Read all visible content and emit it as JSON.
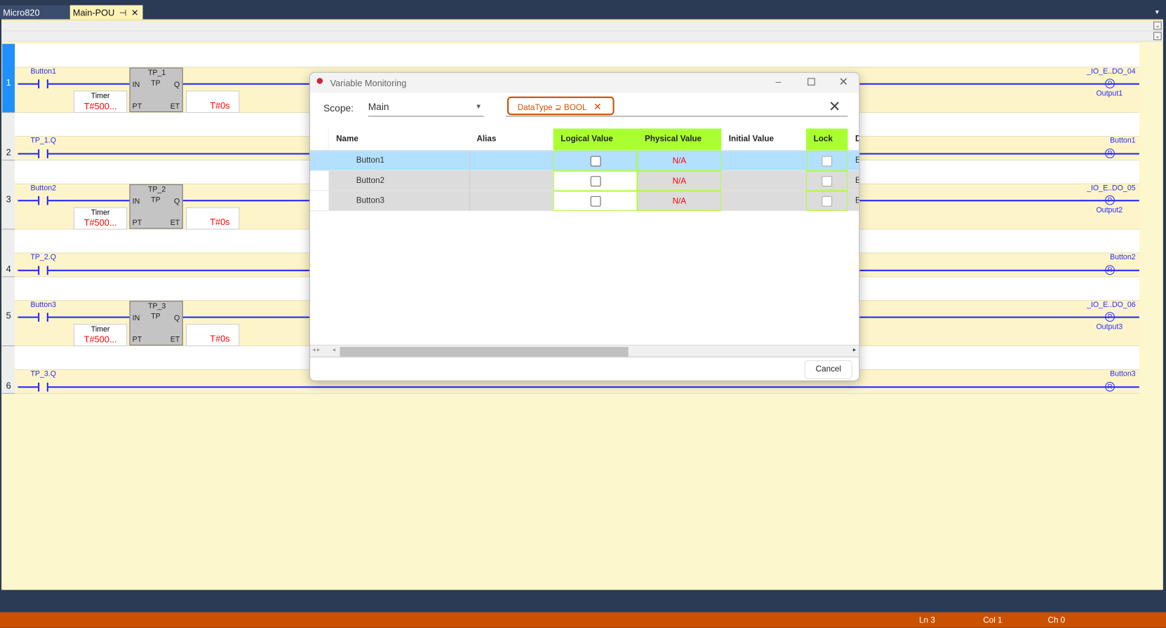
{
  "tabs": [
    {
      "label": "Micro820"
    },
    {
      "label": "Main-POU",
      "pin": "⊣",
      "close": "✕"
    }
  ],
  "rungs": [
    {
      "num": "1",
      "selected": true,
      "contact": "Button1",
      "block": {
        "instance": "TP_1",
        "type": "TP",
        "in": "IN",
        "q": "Q",
        "pt": "PT",
        "et": "ET",
        "pt_label": "Timer",
        "pt_value": "T#500...",
        "et_value": "T#0s"
      },
      "coil_top": "_IO_E..DO_04",
      "coil_name": "Output1",
      "coil_symbol": "P"
    },
    {
      "num": "2",
      "contact": "TP_1.Q",
      "coil_top": "Button1",
      "coil_symbol": "R"
    },
    {
      "num": "3",
      "contact": "Button2",
      "block": {
        "instance": "TP_2",
        "type": "TP",
        "in": "IN",
        "q": "Q",
        "pt": "PT",
        "et": "ET",
        "pt_label": "Timer",
        "pt_value": "T#500...",
        "et_value": "T#0s"
      },
      "coil_top": "_IO_E..DO_05",
      "coil_name": "Output2",
      "coil_symbol": "P"
    },
    {
      "num": "4",
      "contact": "TP_2.Q",
      "coil_top": "Button2",
      "coil_symbol": "R"
    },
    {
      "num": "5",
      "contact": "Button3",
      "block": {
        "instance": "TP_3",
        "type": "TP",
        "in": "IN",
        "q": "Q",
        "pt": "PT",
        "et": "ET",
        "pt_label": "Timer",
        "pt_value": "T#500...",
        "et_value": "T#0s"
      },
      "coil_top": "_IO_E..DO_06",
      "coil_name": "Output3",
      "coil_symbol": "P"
    },
    {
      "num": "6",
      "contact": "TP_3.Q",
      "coil_top": "Button3",
      "coil_symbol": "R"
    }
  ],
  "dialog": {
    "title": "Variable Monitoring",
    "scope_label": "Scope:",
    "scope_value": "Main",
    "filter_chip": "DataType ⊇ BOOL",
    "columns": [
      "Name",
      "Alias",
      "Logical Value",
      "Physical Value",
      "Initial Value",
      "Lock",
      "D"
    ],
    "rows": [
      {
        "name": "Button1",
        "alias": "",
        "logical": false,
        "physical": "N/A",
        "initial": "",
        "lock": false,
        "d": "B",
        "selected": true
      },
      {
        "name": "Button2",
        "alias": "",
        "logical": false,
        "physical": "N/A",
        "initial": "",
        "lock": false,
        "d": "B"
      },
      {
        "name": "Button3",
        "alias": "",
        "logical": false,
        "physical": "N/A",
        "initial": "",
        "lock": false,
        "d": "B"
      }
    ],
    "cancel_label": "Cancel"
  },
  "status": {
    "ln": "Ln 3",
    "col": "Col 1",
    "ch": "Ch 0"
  },
  "colors": {
    "accent": "#ca5100",
    "wire": "#2a2aff",
    "highlight_col": "#aaff33",
    "selected_row": "#b3e0ff"
  }
}
